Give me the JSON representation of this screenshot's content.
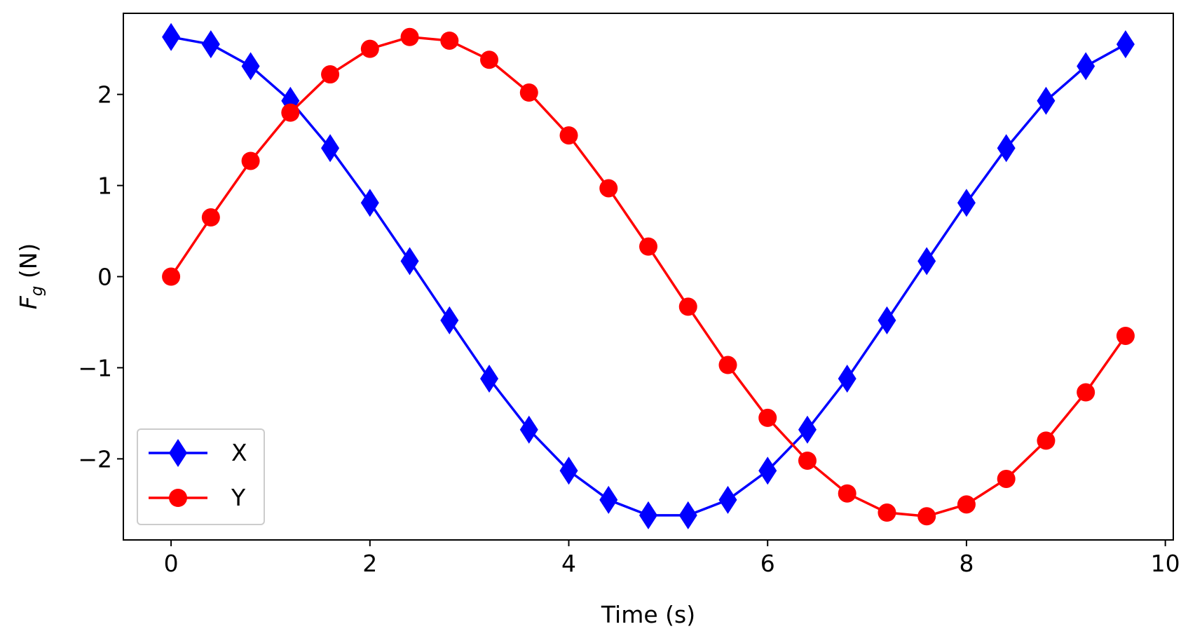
{
  "chart_data": {
    "type": "line",
    "title": "",
    "xlabel": "Time (s)",
    "ylabel_main": "F",
    "ylabel_sub": "g",
    "ylabel_unit": " (N)",
    "xlim": [
      -0.48,
      10.08
    ],
    "ylim": [
      -2.89,
      2.89
    ],
    "x_ticks": [
      0,
      2,
      4,
      6,
      8,
      10
    ],
    "x_tick_labels": [
      "0",
      "2",
      "4",
      "6",
      "8",
      "10"
    ],
    "y_ticks": [
      -2,
      -1,
      0,
      1,
      2
    ],
    "y_tick_labels": [
      "−2",
      "−1",
      "0",
      "1",
      "2"
    ],
    "grid": false,
    "legend_position": "lower-left",
    "x": [
      0,
      0.4,
      0.8,
      1.2,
      1.6,
      2.0,
      2.4,
      2.8,
      3.2,
      3.6,
      4.0,
      4.4,
      4.8,
      5.2,
      5.6,
      6.0,
      6.4,
      6.8,
      7.2,
      7.6,
      8.0,
      8.4,
      8.8,
      9.2,
      9.6
    ],
    "series": [
      {
        "name": "X",
        "color": "#0000ff",
        "marker": "diamond",
        "values": [
          2.63,
          2.55,
          2.31,
          1.93,
          1.41,
          0.81,
          0.17,
          -0.48,
          -1.12,
          -1.68,
          -2.13,
          -2.45,
          -2.62,
          -2.62,
          -2.45,
          -2.13,
          -1.68,
          -1.12,
          -0.48,
          0.17,
          0.81,
          1.41,
          1.93,
          2.31,
          2.55
        ]
      },
      {
        "name": "Y",
        "color": "#ff0000",
        "marker": "circle",
        "values": [
          0.0,
          0.65,
          1.27,
          1.8,
          2.22,
          2.5,
          2.63,
          2.59,
          2.38,
          2.02,
          1.55,
          0.97,
          0.33,
          -0.33,
          -0.97,
          -1.55,
          -2.02,
          -2.38,
          -2.59,
          -2.63,
          -2.5,
          -2.22,
          -1.8,
          -1.27,
          -0.65
        ]
      }
    ]
  }
}
